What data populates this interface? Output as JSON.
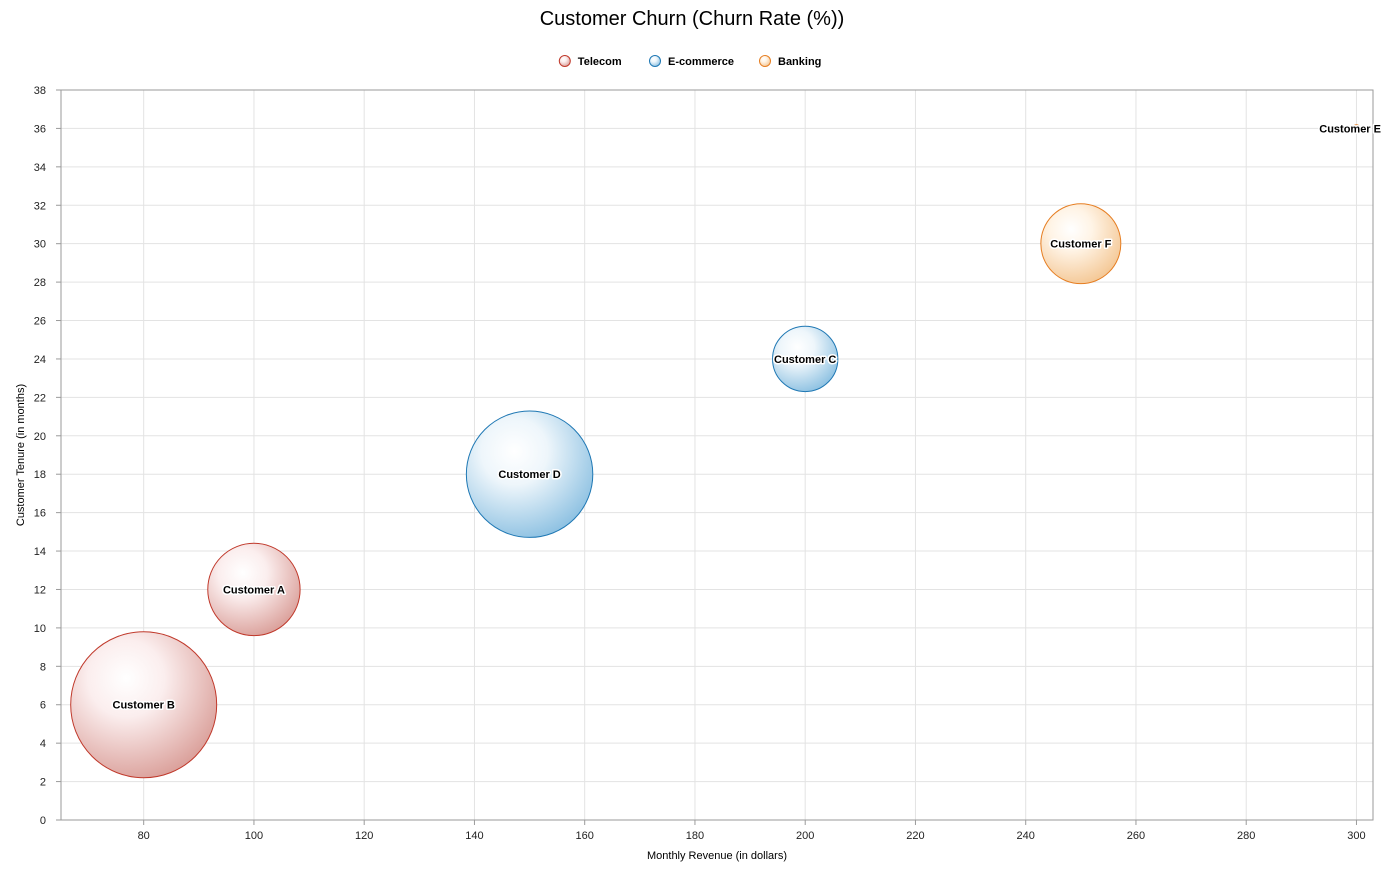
{
  "chart_data": {
    "type": "bubble",
    "title": "Customer Churn (Churn Rate (%))",
    "xlabel": "Monthly Revenue (in dollars)",
    "ylabel": "Customer Tenure (in months)",
    "xlim": [
      65,
      303
    ],
    "ylim": [
      0,
      38
    ],
    "x_ticks": [
      80,
      100,
      120,
      140,
      160,
      180,
      200,
      220,
      240,
      260,
      280,
      300
    ],
    "y_ticks": [
      0,
      2,
      4,
      6,
      8,
      10,
      12,
      14,
      16,
      18,
      20,
      22,
      24,
      26,
      28,
      30,
      32,
      34,
      36,
      38
    ],
    "grid": true,
    "legend_position": "top-center",
    "size_metric": "Churn Rate (%)",
    "series": [
      {
        "name": "Telecom",
        "color": "#c0392b",
        "fill_light": "#fbeeee",
        "fill_dark": "#d89a94",
        "points": [
          {
            "label": "Customer A",
            "x": 100,
            "y": 12,
            "size": 8
          },
          {
            "label": "Customer B",
            "x": 80,
            "y": 6,
            "size": 20
          }
        ]
      },
      {
        "name": "E-commerce",
        "color": "#1f78b4",
        "fill_light": "#eef6fb",
        "fill_dark": "#86bde0",
        "points": [
          {
            "label": "Customer C",
            "x": 200,
            "y": 24,
            "size": 4
          },
          {
            "label": "Customer D",
            "x": 150,
            "y": 18,
            "size": 15
          }
        ]
      },
      {
        "name": "Banking",
        "color": "#e67e22",
        "fill_light": "#fff4e6",
        "fill_dark": "#f3c48f",
        "points": [
          {
            "label": "Customer E",
            "x": 300,
            "y": 36,
            "size": 0.05
          },
          {
            "label": "Customer F",
            "x": 250,
            "y": 30,
            "size": 6
          }
        ]
      }
    ]
  }
}
